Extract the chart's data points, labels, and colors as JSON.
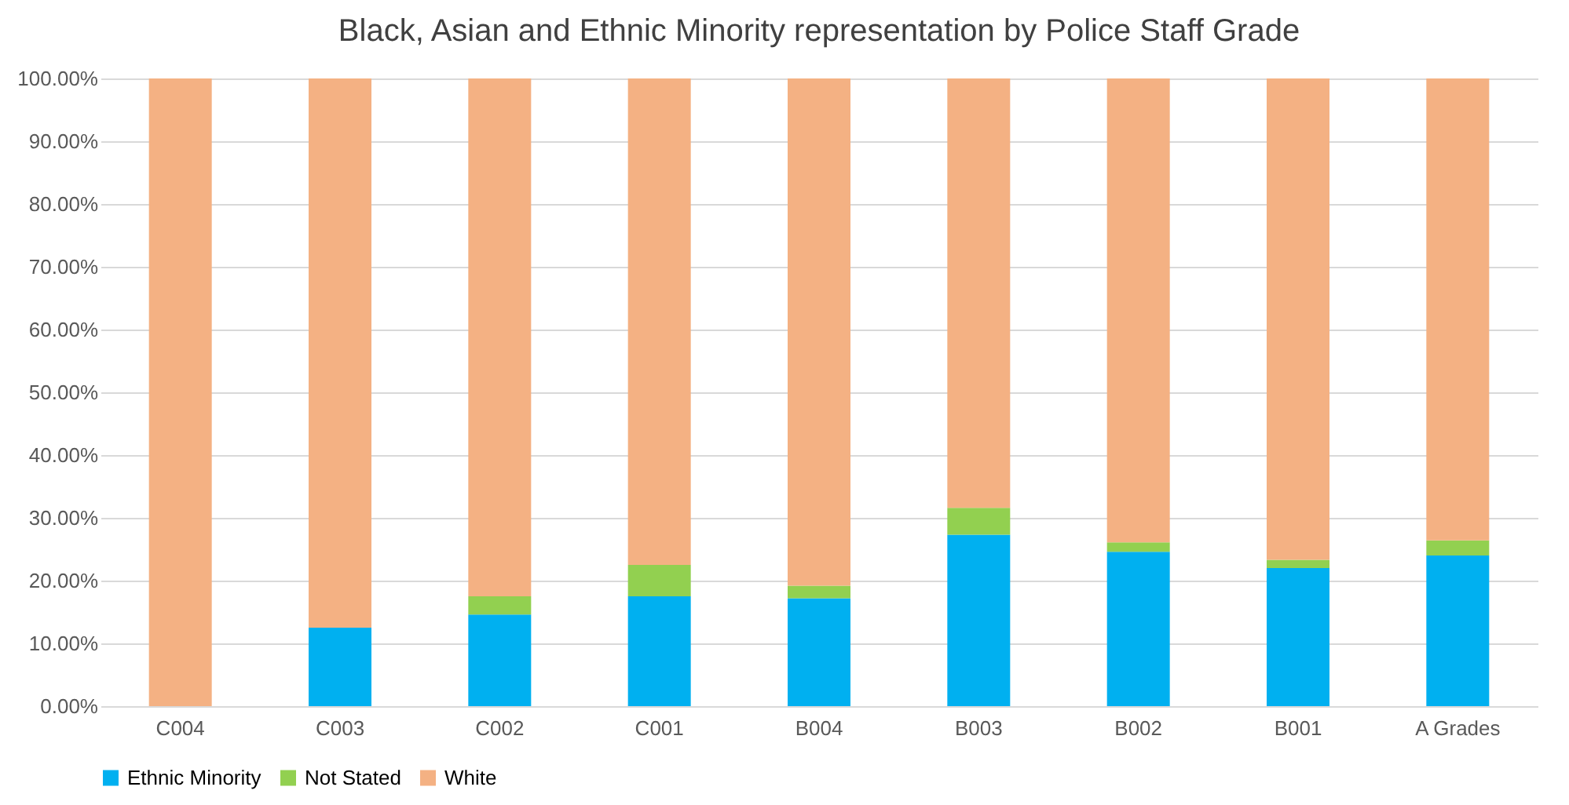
{
  "chart_data": {
    "type": "bar",
    "title": "Black, Asian and Ethnic Minority representation by Police Staff Grade",
    "categories": [
      "C004",
      "C003",
      "C002",
      "C001",
      "B004",
      "B003",
      "B002",
      "B001",
      "A Grades"
    ],
    "stacked": true,
    "series": [
      {
        "name": "Ethnic Minority",
        "color": "#00b0f0",
        "values": [
          0,
          12.5,
          14.6,
          17.5,
          17.2,
          27.3,
          24.6,
          22.0,
          24.0
        ]
      },
      {
        "name": "Not Stated",
        "color": "#92d050",
        "values": [
          0,
          0,
          2.9,
          5.0,
          2.0,
          4.3,
          1.5,
          1.3,
          2.4
        ]
      },
      {
        "name": "White",
        "color": "#f4b183",
        "values": [
          100,
          87.5,
          82.5,
          77.5,
          80.8,
          68.4,
          73.9,
          76.7,
          73.6
        ]
      }
    ],
    "ylim": [
      0,
      100
    ],
    "yticks": [
      {
        "value": 0,
        "label": "0.00%"
      },
      {
        "value": 10,
        "label": "10.00%"
      },
      {
        "value": 20,
        "label": "20.00%"
      },
      {
        "value": 30,
        "label": "30.00%"
      },
      {
        "value": 40,
        "label": "40.00%"
      },
      {
        "value": 50,
        "label": "50.00%"
      },
      {
        "value": 60,
        "label": "60.00%"
      },
      {
        "value": 70,
        "label": "70.00%"
      },
      {
        "value": 80,
        "label": "80.00%"
      },
      {
        "value": 90,
        "label": "90.00%"
      },
      {
        "value": 100,
        "label": "100.00%"
      }
    ],
    "grid": "y",
    "legend": "bottom"
  }
}
